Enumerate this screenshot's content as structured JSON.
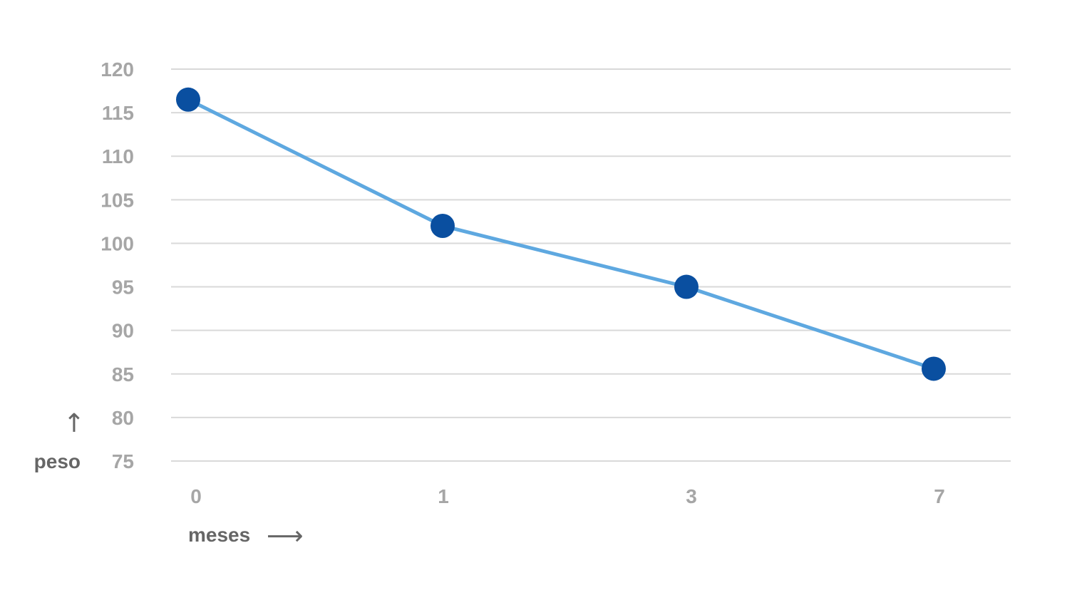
{
  "chart_data": {
    "type": "line",
    "categories": [
      "0",
      "1",
      "3",
      "7"
    ],
    "series": [
      {
        "values": [
          116.5,
          102,
          95,
          85.6
        ]
      }
    ],
    "title": "",
    "xlabel": "meses",
    "ylabel": "peso",
    "x_arrow": "⟶",
    "y_arrow": "↑",
    "ylim": [
      75,
      120
    ],
    "yticks": [
      "75",
      "80",
      "85",
      "90",
      "95",
      "100",
      "105",
      "110",
      "115",
      "120"
    ],
    "grid": true,
    "legend": "none",
    "colors": {
      "line": "#5ea8e0",
      "marker": "#0a4fa0",
      "grid": "#d9d9d9",
      "tick_text": "#a6a6a6",
      "axis_title": "#666666"
    }
  }
}
